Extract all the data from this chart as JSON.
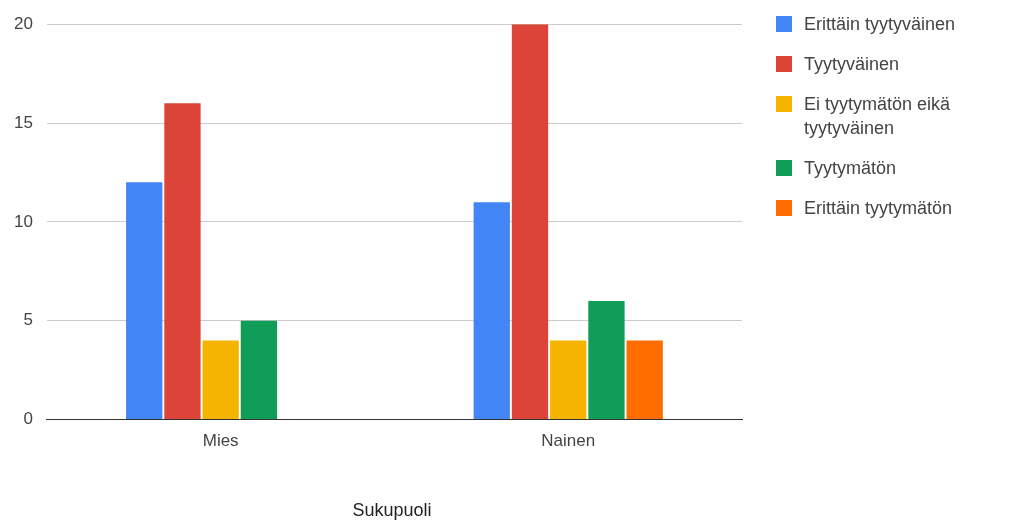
{
  "chart_data": {
    "type": "bar",
    "xlabel": "Sukupuoli",
    "categories": [
      "Mies",
      "Nainen"
    ],
    "series": [
      {
        "name": "Erittäin tyytyväinen",
        "color": "#4285f4",
        "values": [
          12,
          11
        ]
      },
      {
        "name": "Tyytyväinen",
        "color": "#db4437",
        "values": [
          16,
          20
        ]
      },
      {
        "name": "Ei tyytymätön eikä tyytyväinen",
        "color": "#f4b400",
        "values": [
          4,
          4
        ]
      },
      {
        "name": "Tyytymätön",
        "color": "#0f9d58",
        "values": [
          5,
          6
        ]
      },
      {
        "name": "Erittäin tyytymätön",
        "color": "#ff6d00",
        "values": [
          null,
          4
        ]
      }
    ],
    "ylim": [
      0,
      20
    ],
    "yticks": [
      0,
      5,
      10,
      15,
      20
    ],
    "grid": "y",
    "legend": "right"
  }
}
